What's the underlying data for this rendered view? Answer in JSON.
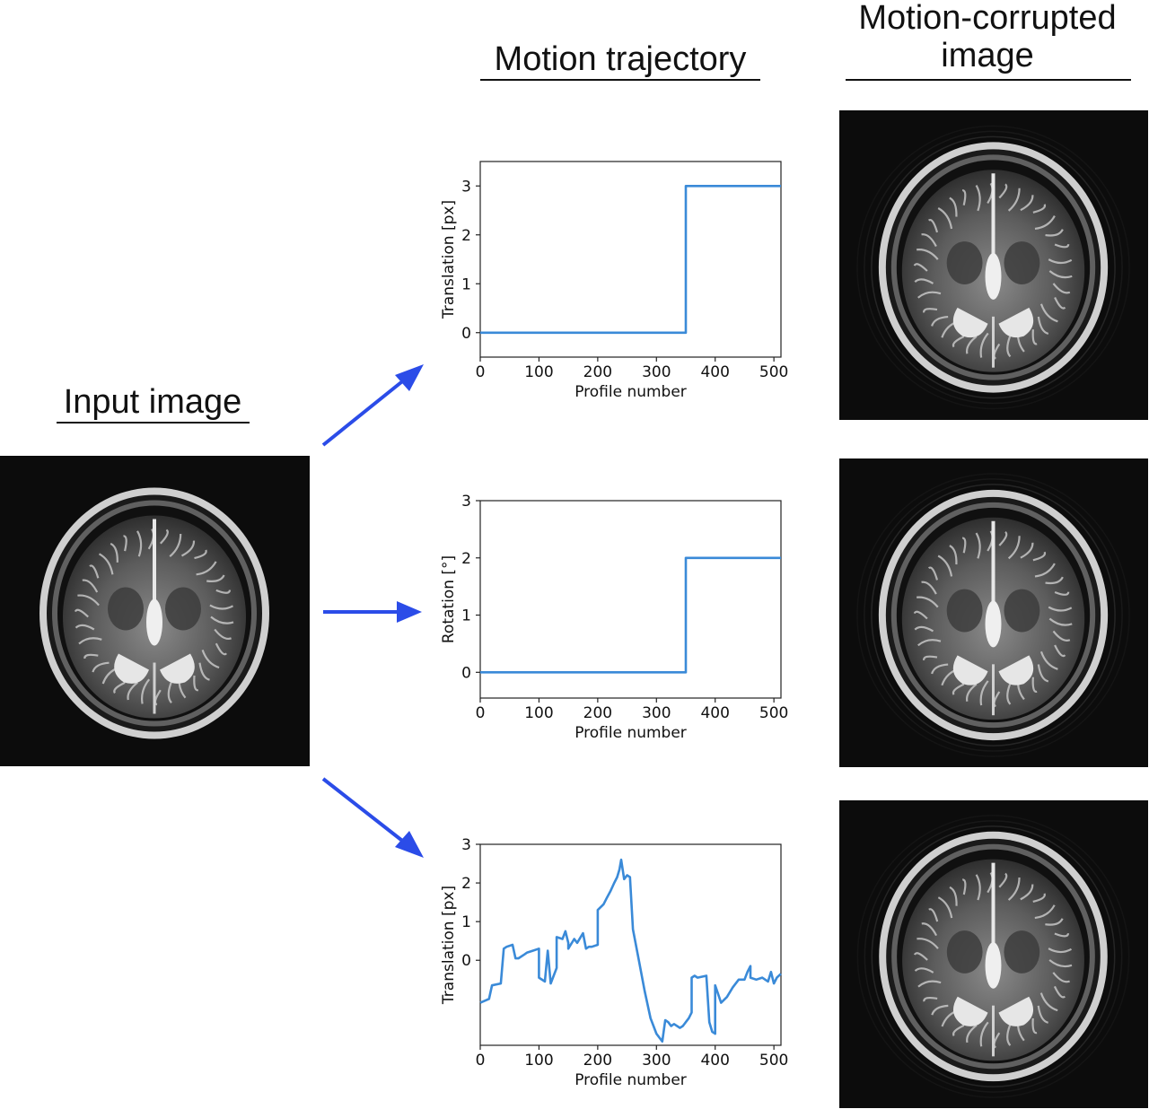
{
  "headings": {
    "input_image": "Input image",
    "motion_trajectory": "Motion trajectory",
    "motion_corrupted_line1": "Motion-corrupted",
    "motion_corrupted_line2": "image"
  },
  "colors": {
    "arrow": "#2b4ce8",
    "trace": "#3a8ad8",
    "axis": "#222222",
    "mri_background": "#0c0c0c"
  },
  "chart_data": [
    {
      "type": "line",
      "xlabel": "Profile number",
      "ylabel": "Translation [px]",
      "xlim": [
        0,
        512
      ],
      "ylim": [
        -0.5,
        3.5
      ],
      "xticks": [
        0,
        100,
        200,
        300,
        400,
        500
      ],
      "yticks": [
        0,
        1,
        2,
        3
      ],
      "grid": false,
      "series": [
        {
          "x": [
            0,
            350,
            350,
            512
          ],
          "y": [
            0,
            0,
            3,
            3
          ]
        }
      ]
    },
    {
      "type": "line",
      "xlabel": "Profile number",
      "ylabel": "Rotation [°]",
      "xlim": [
        0,
        512
      ],
      "ylim": [
        -0.45,
        3.0
      ],
      "xticks": [
        0,
        100,
        200,
        300,
        400,
        500
      ],
      "yticks": [
        0,
        1,
        2,
        3
      ],
      "grid": false,
      "series": [
        {
          "x": [
            0,
            350,
            350,
            512
          ],
          "y": [
            0,
            0,
            2,
            2
          ]
        }
      ]
    },
    {
      "type": "line",
      "xlabel": "Profile number",
      "ylabel": "Translation [px]",
      "xlim": [
        0,
        512
      ],
      "ylim": [
        -2.2,
        3.0
      ],
      "xticks": [
        0,
        100,
        200,
        300,
        400,
        500
      ],
      "yticks": [
        0,
        1,
        2,
        3
      ],
      "grid": false,
      "series": [
        {
          "x": [
            0,
            15,
            20,
            35,
            40,
            45,
            55,
            60,
            65,
            75,
            80,
            90,
            100,
            100,
            110,
            115,
            120,
            130,
            130,
            140,
            145,
            150,
            150,
            160,
            165,
            175,
            180,
            185,
            190,
            200,
            200,
            210,
            215,
            222,
            228,
            233,
            237,
            240,
            245,
            250,
            255,
            260,
            270,
            280,
            290,
            300,
            310,
            315,
            320,
            325,
            330,
            340,
            345,
            355,
            360,
            360,
            365,
            370,
            385,
            390,
            395,
            400,
            400,
            410,
            420,
            430,
            440,
            450,
            455,
            460,
            460,
            470,
            480,
            490,
            495,
            500,
            505,
            512
          ],
          "y": [
            -1.1,
            -1.0,
            -0.65,
            -0.6,
            0.3,
            0.35,
            0.4,
            0.05,
            0.05,
            0.15,
            0.2,
            0.25,
            0.3,
            -0.45,
            -0.55,
            0.25,
            -0.6,
            -0.2,
            0.6,
            0.55,
            0.75,
            0.45,
            0.3,
            0.55,
            0.45,
            0.7,
            0.3,
            0.35,
            0.35,
            0.4,
            1.3,
            1.45,
            1.6,
            1.8,
            2.0,
            2.15,
            2.35,
            2.6,
            2.1,
            2.2,
            2.15,
            0.8,
            0.0,
            -0.8,
            -1.5,
            -1.9,
            -2.1,
            -1.55,
            -1.6,
            -1.7,
            -1.65,
            -1.75,
            -1.7,
            -1.5,
            -1.35,
            -0.45,
            -0.4,
            -0.45,
            -0.4,
            -1.6,
            -1.85,
            -1.9,
            -0.65,
            -1.1,
            -0.95,
            -0.7,
            -0.5,
            -0.5,
            -0.3,
            -0.15,
            -0.45,
            -0.5,
            -0.45,
            -0.55,
            -0.3,
            -0.6,
            -0.45,
            -0.35
          ]
        }
      ]
    }
  ]
}
